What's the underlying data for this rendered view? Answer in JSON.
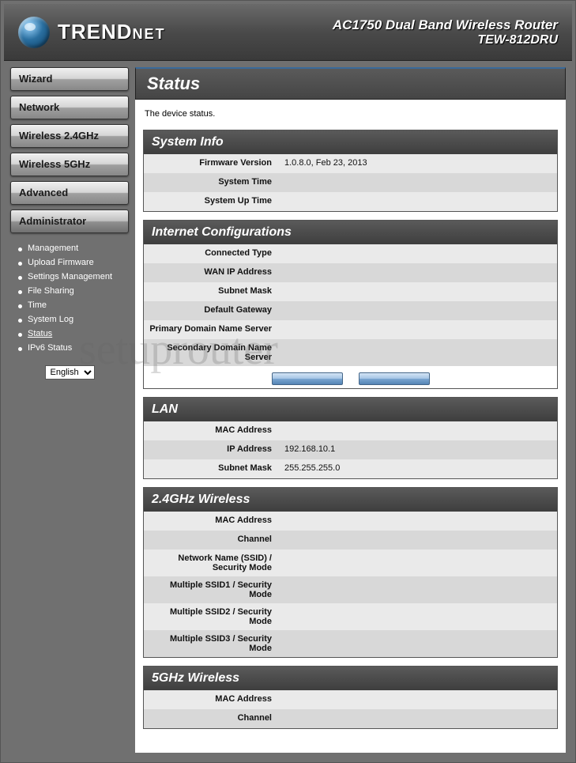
{
  "header": {
    "brand_prefix": "TREND",
    "brand_suffix": "NET",
    "product_line1": "AC1750 Dual Band Wireless Router",
    "product_line2": "TEW-812DRU"
  },
  "sidebar": {
    "nav": [
      {
        "label": "Wizard",
        "active": false
      },
      {
        "label": "Network",
        "active": false
      },
      {
        "label": "Wireless 2.4GHz",
        "active": false
      },
      {
        "label": "Wireless 5GHz",
        "active": false
      },
      {
        "label": "Advanced",
        "active": false
      },
      {
        "label": "Administrator",
        "active": true
      }
    ],
    "submenu": [
      {
        "label": "Management",
        "current": false
      },
      {
        "label": "Upload Firmware",
        "current": false
      },
      {
        "label": "Settings Management",
        "current": false
      },
      {
        "label": "File Sharing",
        "current": false
      },
      {
        "label": "Time",
        "current": false
      },
      {
        "label": "System Log",
        "current": false
      },
      {
        "label": "Status",
        "current": true
      },
      {
        "label": "IPv6 Status",
        "current": false
      }
    ],
    "language": "English"
  },
  "page": {
    "title": "Status",
    "description": "The device status."
  },
  "sections": [
    {
      "title": "System Info",
      "rows": [
        {
          "label": "Firmware Version",
          "value": "1.0.8.0, Feb 23, 2013"
        },
        {
          "label": "System Time",
          "value": ""
        },
        {
          "label": "System Up Time",
          "value": ""
        }
      ],
      "buttons": false
    },
    {
      "title": "Internet Configurations",
      "rows": [
        {
          "label": "Connected Type",
          "value": ""
        },
        {
          "label": "WAN IP Address",
          "value": ""
        },
        {
          "label": "Subnet Mask",
          "value": ""
        },
        {
          "label": "Default Gateway",
          "value": ""
        },
        {
          "label": "Primary Domain Name Server",
          "value": ""
        },
        {
          "label": "Secondary Domain Name Server",
          "value": ""
        }
      ],
      "buttons": true
    },
    {
      "title": "LAN",
      "rows": [
        {
          "label": "MAC Address",
          "value": ""
        },
        {
          "label": "IP Address",
          "value": "192.168.10.1"
        },
        {
          "label": "Subnet Mask",
          "value": "255.255.255.0"
        }
      ],
      "buttons": false
    },
    {
      "title": "2.4GHz Wireless",
      "rows": [
        {
          "label": "MAC Address",
          "value": ""
        },
        {
          "label": "Channel",
          "value": ""
        },
        {
          "label": "Network Name (SSID) / Security Mode",
          "value": ""
        },
        {
          "label": "Multiple SSID1 / Security Mode",
          "value": ""
        },
        {
          "label": "Multiple SSID2 / Security Mode",
          "value": ""
        },
        {
          "label": "Multiple SSID3 / Security Mode",
          "value": ""
        }
      ],
      "buttons": false
    },
    {
      "title": "5GHz Wireless",
      "rows": [
        {
          "label": "MAC Address",
          "value": ""
        },
        {
          "label": "Channel",
          "value": ""
        }
      ],
      "buttons": false
    }
  ],
  "watermark": "setuprouter"
}
